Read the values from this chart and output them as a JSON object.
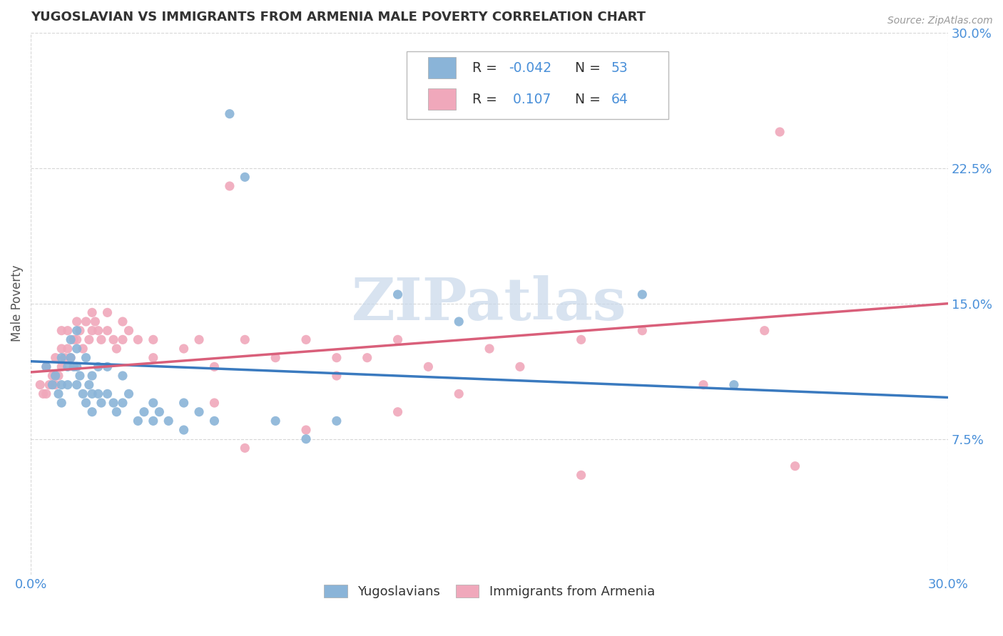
{
  "title": "YUGOSLAVIAN VS IMMIGRANTS FROM ARMENIA MALE POVERTY CORRELATION CHART",
  "source": "Source: ZipAtlas.com",
  "ylabel": "Male Poverty",
  "xlim": [
    0.0,
    0.3
  ],
  "ylim": [
    0.0,
    0.3
  ],
  "watermark": "ZIPatlas",
  "blue_color": "#8ab4d8",
  "pink_color": "#f0a8bb",
  "line_blue": "#3a7abf",
  "line_pink": "#d95f7a",
  "title_color": "#333333",
  "axis_label_color": "#4a90d9",
  "blue_scatter_x": [
    0.005,
    0.007,
    0.008,
    0.009,
    0.01,
    0.01,
    0.01,
    0.012,
    0.012,
    0.013,
    0.013,
    0.014,
    0.015,
    0.015,
    0.015,
    0.015,
    0.016,
    0.017,
    0.018,
    0.018,
    0.019,
    0.02,
    0.02,
    0.02,
    0.022,
    0.022,
    0.023,
    0.025,
    0.025,
    0.027,
    0.028,
    0.03,
    0.03,
    0.032,
    0.035,
    0.037,
    0.04,
    0.04,
    0.042,
    0.045,
    0.05,
    0.05,
    0.055,
    0.06,
    0.065,
    0.07,
    0.08,
    0.09,
    0.1,
    0.12,
    0.14,
    0.2,
    0.23
  ],
  "blue_scatter_y": [
    0.115,
    0.105,
    0.11,
    0.1,
    0.12,
    0.105,
    0.095,
    0.115,
    0.105,
    0.13,
    0.12,
    0.115,
    0.135,
    0.125,
    0.115,
    0.105,
    0.11,
    0.1,
    0.12,
    0.095,
    0.105,
    0.11,
    0.1,
    0.09,
    0.115,
    0.1,
    0.095,
    0.115,
    0.1,
    0.095,
    0.09,
    0.11,
    0.095,
    0.1,
    0.085,
    0.09,
    0.095,
    0.085,
    0.09,
    0.085,
    0.095,
    0.08,
    0.09,
    0.085,
    0.255,
    0.22,
    0.085,
    0.075,
    0.085,
    0.155,
    0.14,
    0.155,
    0.105
  ],
  "pink_scatter_x": [
    0.003,
    0.004,
    0.005,
    0.005,
    0.006,
    0.007,
    0.008,
    0.008,
    0.009,
    0.01,
    0.01,
    0.01,
    0.011,
    0.012,
    0.012,
    0.013,
    0.014,
    0.015,
    0.015,
    0.016,
    0.017,
    0.018,
    0.019,
    0.02,
    0.02,
    0.021,
    0.022,
    0.023,
    0.025,
    0.025,
    0.027,
    0.028,
    0.03,
    0.03,
    0.032,
    0.035,
    0.04,
    0.04,
    0.05,
    0.055,
    0.06,
    0.065,
    0.07,
    0.08,
    0.09,
    0.1,
    0.1,
    0.11,
    0.12,
    0.13,
    0.14,
    0.15,
    0.16,
    0.18,
    0.2,
    0.22,
    0.24,
    0.245,
    0.25,
    0.06,
    0.07,
    0.09,
    0.12,
    0.18
  ],
  "pink_scatter_y": [
    0.105,
    0.1,
    0.115,
    0.1,
    0.105,
    0.11,
    0.12,
    0.105,
    0.11,
    0.135,
    0.125,
    0.115,
    0.12,
    0.135,
    0.125,
    0.12,
    0.13,
    0.14,
    0.13,
    0.135,
    0.125,
    0.14,
    0.13,
    0.145,
    0.135,
    0.14,
    0.135,
    0.13,
    0.145,
    0.135,
    0.13,
    0.125,
    0.14,
    0.13,
    0.135,
    0.13,
    0.13,
    0.12,
    0.125,
    0.13,
    0.115,
    0.215,
    0.13,
    0.12,
    0.13,
    0.12,
    0.11,
    0.12,
    0.13,
    0.115,
    0.1,
    0.125,
    0.115,
    0.13,
    0.135,
    0.105,
    0.135,
    0.245,
    0.06,
    0.095,
    0.07,
    0.08,
    0.09,
    0.055
  ],
  "blue_line_x0": 0.0,
  "blue_line_x1": 0.3,
  "blue_line_y0": 0.118,
  "blue_line_y1": 0.098,
  "pink_line_x0": 0.0,
  "pink_line_x1": 0.3,
  "pink_line_y0": 0.112,
  "pink_line_y1": 0.15
}
